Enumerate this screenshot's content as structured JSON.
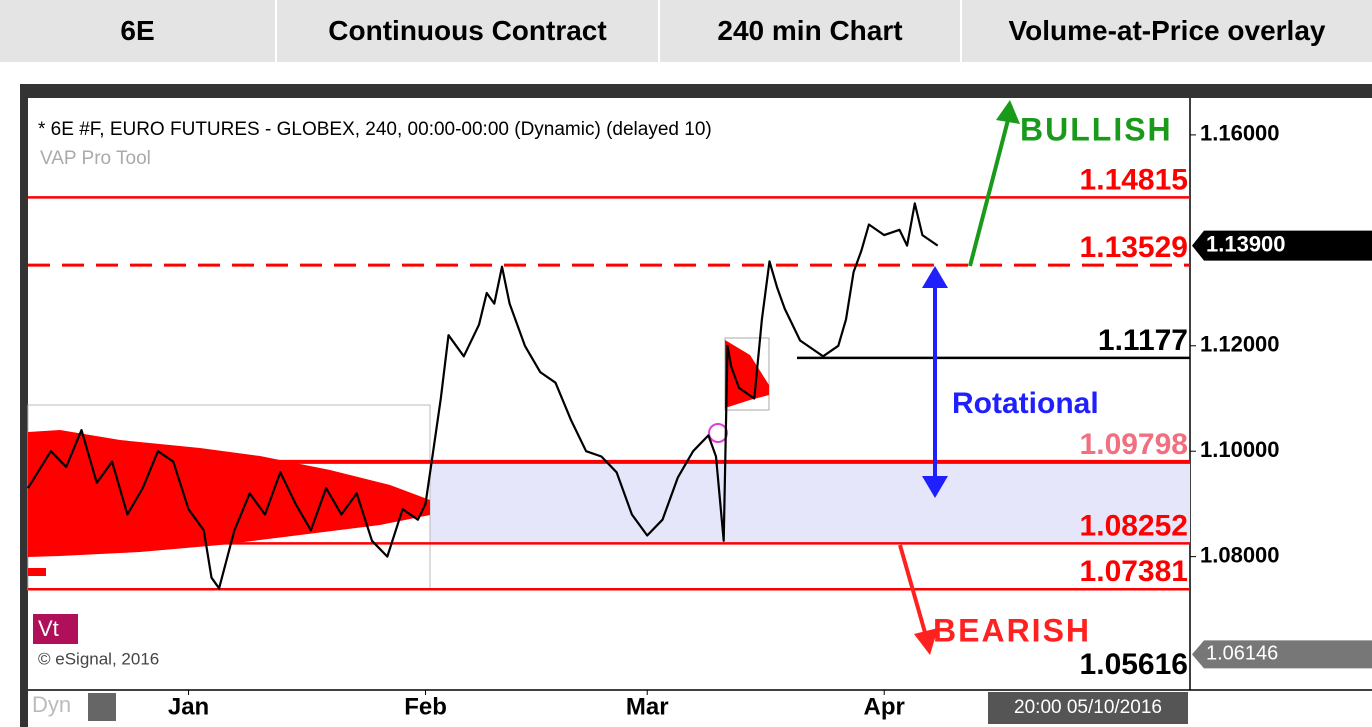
{
  "header": {
    "cells": [
      "6E",
      "Continuous Contract",
      "240 min Chart",
      "Volume-at-Price overlay"
    ]
  },
  "chart_data": {
    "type": "line",
    "title": "* 6E #F, EURO FUTURES - GLOBEX, 240, 00:00-00:00 (Dynamic) (delayed 10)",
    "subtitle": "VAP Pro Tool",
    "color": "#000000",
    "x": [
      -21,
      -18,
      -16,
      -14,
      -12,
      -10,
      -8,
      -6,
      -4,
      -2,
      0,
      2,
      3,
      4,
      6,
      8,
      10,
      12,
      14,
      16,
      18,
      20,
      22,
      24,
      26,
      28,
      30,
      31,
      32,
      33,
      34,
      36,
      38,
      39,
      40,
      41,
      42,
      44,
      46,
      48,
      50,
      52,
      54,
      56,
      58,
      60,
      62,
      64,
      66,
      68,
      69,
      70,
      70.5,
      71,
      72,
      73,
      74,
      75,
      76,
      77,
      78,
      80,
      82,
      83,
      85,
      86,
      87,
      88,
      89,
      91,
      93,
      94,
      95,
      96,
      98
    ],
    "values": [
      1.093,
      1.1,
      1.097,
      1.104,
      1.094,
      1.098,
      1.088,
      1.093,
      1.1,
      1.098,
      1.089,
      1.085,
      1.076,
      1.074,
      1.085,
      1.092,
      1.088,
      1.096,
      1.09,
      1.085,
      1.093,
      1.088,
      1.092,
      1.083,
      1.08,
      1.089,
      1.087,
      1.09,
      1.1,
      1.11,
      1.122,
      1.118,
      1.124,
      1.13,
      1.128,
      1.135,
      1.128,
      1.12,
      1.115,
      1.113,
      1.106,
      1.1,
      1.099,
      1.096,
      1.088,
      1.084,
      1.087,
      1.095,
      1.1,
      1.103,
      1.099,
      1.083,
      1.12,
      1.116,
      1.112,
      1.111,
      1.11,
      1.125,
      1.136,
      1.131,
      1.127,
      1.121,
      1.119,
      1.118,
      1.12,
      1.125,
      1.134,
      1.138,
      1.143,
      1.141,
      1.142,
      1.139,
      1.147,
      1.141,
      1.139
    ],
    "xlim": [
      -21,
      131
    ],
    "xticks": [
      {
        "value": 0,
        "label": "Jan"
      },
      {
        "value": 31,
        "label": "Feb"
      },
      {
        "value": 60,
        "label": "Mar"
      },
      {
        "value": 91,
        "label": "Apr"
      }
    ],
    "ylim": [
      1.0547,
      1.167
    ],
    "yticks": [
      {
        "value": 1.16,
        "label": "1.16000"
      },
      {
        "value": 1.12,
        "label": "1.12000"
      },
      {
        "value": 1.1,
        "label": "1.10000"
      },
      {
        "value": 1.08,
        "label": "1.08000"
      }
    ],
    "levels": [
      {
        "value": 1.14815,
        "color": "#ff0000",
        "style": "solid"
      },
      {
        "value": 1.13529,
        "color": "#ff0000",
        "style": "dashed"
      },
      {
        "value": 1.1177,
        "color": "#000000",
        "style": "solid"
      },
      {
        "value": 1.09798,
        "color": "#f07080",
        "style": "thick"
      },
      {
        "value": 1.08252,
        "color": "#ff0000",
        "style": "solid"
      },
      {
        "value": 1.07381,
        "color": "#ff0000",
        "style": "solid"
      },
      {
        "value": 1.05616,
        "color": "#000000",
        "style": "none"
      }
    ],
    "zone_color": "#e6e6fa",
    "last_price": {
      "value": 1.139,
      "label": "1.13900"
    },
    "marker_price": 1.06146,
    "annotations": {
      "bullish": "BULLISH",
      "bearish": "BEARISH",
      "rotational": "Rotational"
    },
    "footer": {
      "badge": "Vt",
      "copyright": "© eSignal, 2016",
      "dyn": "Dyn",
      "timestamp": "20:00 05/10/2016"
    }
  }
}
